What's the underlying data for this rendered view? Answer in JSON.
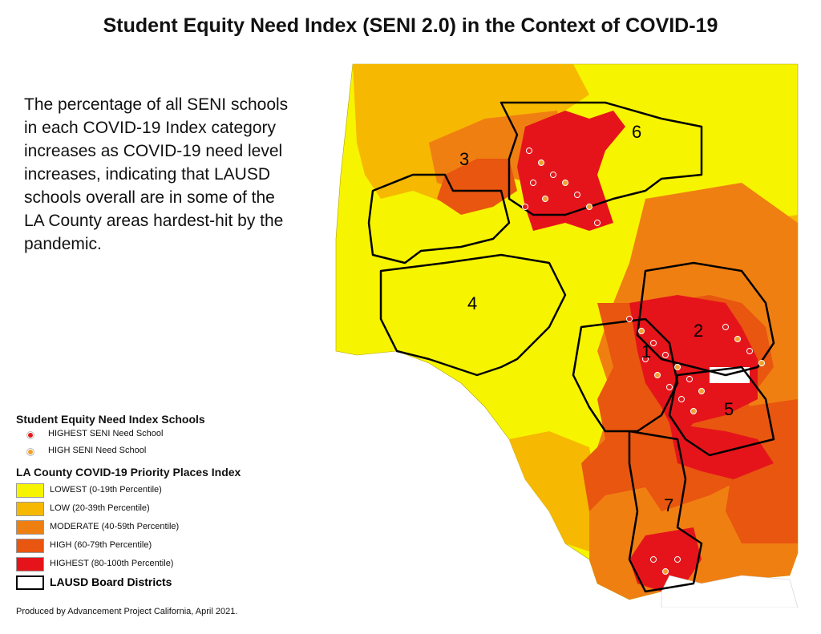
{
  "title": "Student Equity Need Index (SENI 2.0) in the Context of COVID-19",
  "description": "The percentage of all SENI schools in each COVID-19 Index category increases as COVID-19 need level increases, indicating that LAUSD schools overall are in some of the LA County areas hardest-hit by the pandemic.",
  "legend": {
    "schools_title": "Student Equity Need Index Schools",
    "schools": [
      {
        "label": "HIGHEST SENI Need School",
        "color": "#e31a1c"
      },
      {
        "label": "HIGH SENI Need School",
        "color": "#f2a02c"
      }
    ],
    "index_title": "LA County COVID-19 Priority Places Index",
    "categories": [
      {
        "label": "LOWEST (0-19th Percentile)",
        "color": "#f7f400"
      },
      {
        "label": "LOW (20-39th Percentile)",
        "color": "#f6b800"
      },
      {
        "label": "MODERATE (40-59th Percentile)",
        "color": "#f07f12"
      },
      {
        "label": "HIGH (60-79th Percentile)",
        "color": "#e8560f"
      },
      {
        "label": "HIGHEST (80-100th Percentile)",
        "color": "#e5141b"
      }
    ],
    "boundary_label": "LAUSD Board Districts"
  },
  "map": {
    "district_labels": [
      "1",
      "2",
      "3",
      "4",
      "5",
      "6",
      "7"
    ]
  },
  "credit": "Produced by Advancement Project California, April 2021."
}
